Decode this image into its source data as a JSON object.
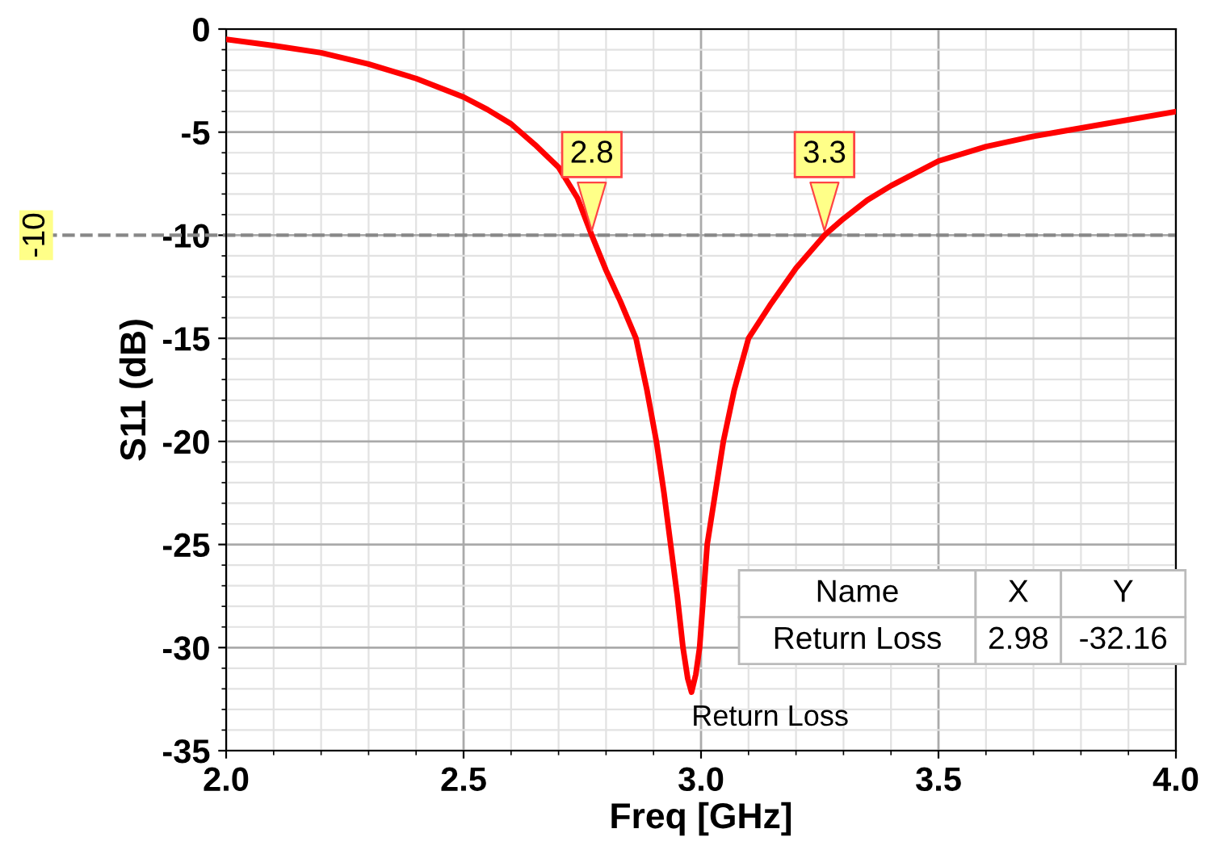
{
  "chart_data": {
    "type": "line",
    "xlabel": "Freq [GHz]",
    "ylabel": "S11 (dB)",
    "xlim": [
      2.0,
      4.0
    ],
    "xticks": [
      {
        "value": 2.0,
        "label": "2.0"
      },
      2.5,
      {
        "value": 3.0,
        "label": "3.0"
      },
      3.5,
      {
        "value": 4.0,
        "label": "4.0"
      }
    ],
    "ylim": [
      -35,
      0
    ],
    "yticks": [
      -35,
      -30,
      -25,
      -20,
      -15,
      -10,
      -5,
      0
    ],
    "grid": true,
    "series": [
      {
        "name": "Return Loss",
        "color": "#ff0000",
        "x": [
          2.0,
          2.1,
          2.2,
          2.3,
          2.4,
          2.5,
          2.55,
          2.6,
          2.65,
          2.7,
          2.74,
          2.77,
          2.8,
          2.83,
          2.863,
          2.886,
          2.906,
          2.922,
          2.936,
          2.95,
          2.962,
          2.972,
          2.98,
          2.989,
          2.997,
          3.005,
          3.013,
          3.03,
          3.047,
          3.07,
          3.1,
          3.148,
          3.2,
          3.26,
          3.3,
          3.35,
          3.4,
          3.5,
          3.6,
          3.7,
          3.75,
          3.85,
          4.0
        ],
        "values": [
          -0.5,
          -0.8,
          -1.15,
          -1.7,
          -2.4,
          -3.3,
          -3.9,
          -4.6,
          -5.6,
          -6.7,
          -8.2,
          -10,
          -11.7,
          -13.2,
          -15,
          -17.5,
          -20,
          -22.5,
          -25,
          -27.5,
          -30,
          -31.5,
          -32.16,
          -31.3,
          -30,
          -27.5,
          -25,
          -22.5,
          -20,
          -17.5,
          -15,
          -13.3,
          -11.6,
          -10,
          -9.2,
          -8.3,
          -7.6,
          -6.4,
          -5.7,
          -5.2,
          -5.0,
          -4.6,
          -4.0
        ]
      }
    ],
    "ref_lines": [
      {
        "axis": "y",
        "value": -10,
        "label": "-10",
        "color": "#888888",
        "line_style": "dashed"
      }
    ],
    "annotations": [
      {
        "text": "2.8",
        "x": 2.77,
        "y": -10
      },
      {
        "text": "3.3",
        "x": 3.26,
        "y": -10
      },
      "Name",
      "X",
      "Y",
      "Return Loss",
      "2.98",
      "-32.16"
    ]
  }
}
